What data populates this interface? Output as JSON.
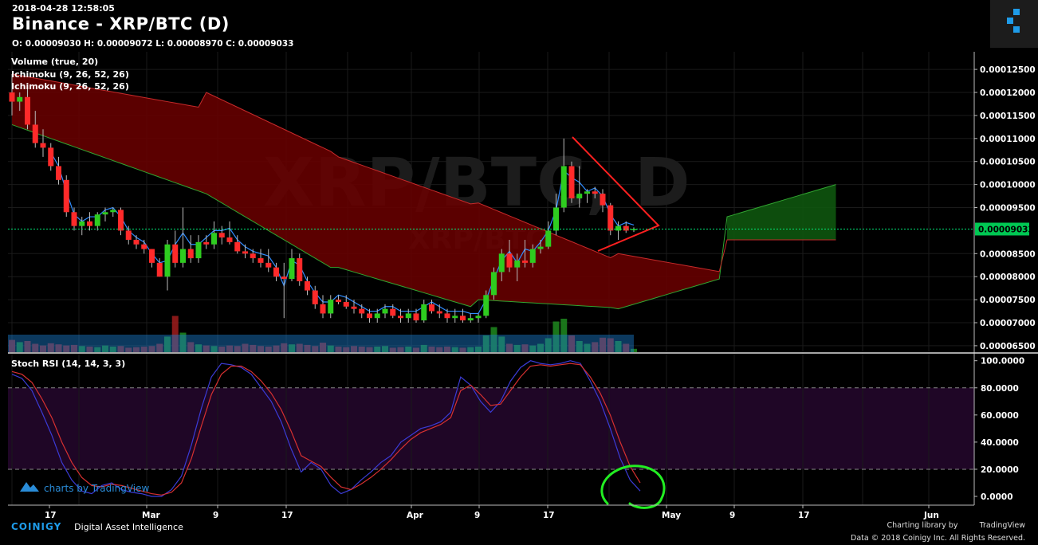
{
  "header": {
    "timestamp": "2018-04-28 12:58:05",
    "title": "Binance - XRP/BTC (D)",
    "ohlc": "O: 0.00009030 H: 0.00009072 L: 0.00008970 C: 0.00009033"
  },
  "indicators": [
    "Volume (true, 20)",
    "Ichimoku (9, 26, 52, 26)",
    "Ichimoku (9, 26, 52, 26)"
  ],
  "watermark": {
    "big": "XRP/BTC, D",
    "small": "XRP/BTC"
  },
  "rsi_label": "Stoch RSI (14, 14, 3, 3)",
  "tradingview_badge": "charts by TradingView",
  "footer": {
    "brand": "COINIGY",
    "tagline": "Digital Asset Intelligence",
    "charting": "Charting library by",
    "tv": "TradingView",
    "copyright": "Data © 2018",
    "company": "Coinigy Inc. All Rights Reserved."
  },
  "colors": {
    "up": "#2ecc1f",
    "down": "#ff2a2a",
    "tenkan": "#2f8cff",
    "cloud_bear": "#6b0000",
    "cloud_bull": "#0f5a0f",
    "last_price": "#00e676",
    "rsi_k": "#3b3bd6",
    "rsi_d": "#d63030"
  },
  "chart_data": [
    {
      "type": "candlestick",
      "price_axis_ticks": [
        "0.00012500",
        "0.00012000",
        "0.00011500",
        "0.00011000",
        "0.00010500",
        "0.00010000",
        "0.00009500",
        "0.00009033",
        "0.00008500",
        "0.00008000",
        "0.00007500",
        "0.00007000",
        "0.00006500"
      ],
      "time_axis_ticks": [
        "17",
        "Mar",
        "9",
        "17",
        "Apr",
        "9",
        "17",
        "May",
        "9",
        "17",
        "Jun"
      ],
      "last_price": "0.00009033",
      "candles": [
        [
          12.0,
          12.4,
          11.5,
          11.8
        ],
        [
          11.8,
          12.0,
          11.6,
          11.9
        ],
        [
          11.9,
          12.1,
          11.2,
          11.3
        ],
        [
          11.3,
          11.6,
          10.8,
          10.9
        ],
        [
          10.9,
          11.2,
          10.6,
          10.8
        ],
        [
          10.8,
          10.9,
          10.3,
          10.4
        ],
        [
          10.4,
          10.6,
          10.0,
          10.1
        ],
        [
          10.1,
          10.2,
          9.3,
          9.4
        ],
        [
          9.4,
          9.5,
          9.0,
          9.1
        ],
        [
          9.1,
          9.3,
          8.9,
          9.2
        ],
        [
          9.2,
          9.4,
          9.0,
          9.1
        ],
        [
          9.1,
          9.4,
          9.0,
          9.35
        ],
        [
          9.35,
          9.5,
          9.2,
          9.4
        ],
        [
          9.4,
          9.5,
          9.3,
          9.45
        ],
        [
          9.45,
          9.5,
          8.9,
          9.0
        ],
        [
          9.0,
          9.1,
          8.7,
          8.8
        ],
        [
          8.8,
          8.9,
          8.6,
          8.7
        ],
        [
          8.7,
          8.8,
          8.5,
          8.6
        ],
        [
          8.6,
          8.6,
          8.2,
          8.3
        ],
        [
          8.3,
          8.4,
          8.0,
          8.0
        ],
        [
          8.0,
          8.8,
          7.7,
          8.7
        ],
        [
          8.7,
          9.0,
          8.2,
          8.3
        ],
        [
          8.3,
          9.5,
          8.2,
          8.6
        ],
        [
          8.6,
          8.9,
          8.3,
          8.4
        ],
        [
          8.4,
          8.9,
          8.3,
          8.75
        ],
        [
          8.75,
          8.9,
          8.6,
          8.7
        ],
        [
          8.7,
          9.2,
          8.6,
          8.95
        ],
        [
          8.95,
          9.1,
          8.7,
          8.85
        ],
        [
          8.85,
          9.2,
          8.7,
          8.75
        ],
        [
          8.75,
          8.9,
          8.5,
          8.55
        ],
        [
          8.55,
          8.7,
          8.4,
          8.5
        ],
        [
          8.5,
          8.6,
          8.3,
          8.4
        ],
        [
          8.4,
          8.6,
          8.2,
          8.3
        ],
        [
          8.3,
          8.6,
          8.1,
          8.2
        ],
        [
          8.2,
          8.3,
          7.9,
          8.0
        ],
        [
          8.0,
          8.3,
          7.1,
          7.95
        ],
        [
          7.95,
          8.6,
          7.9,
          8.4
        ],
        [
          8.4,
          8.5,
          7.8,
          7.9
        ],
        [
          7.9,
          8.0,
          7.6,
          7.7
        ],
        [
          7.7,
          7.8,
          7.3,
          7.4
        ],
        [
          7.4,
          7.6,
          7.1,
          7.2
        ],
        [
          7.2,
          7.6,
          7.1,
          7.5
        ],
        [
          7.5,
          7.6,
          7.4,
          7.45
        ],
        [
          7.45,
          7.6,
          7.3,
          7.35
        ],
        [
          7.35,
          7.5,
          7.2,
          7.3
        ],
        [
          7.3,
          7.4,
          7.1,
          7.2
        ],
        [
          7.2,
          7.3,
          7.0,
          7.1
        ],
        [
          7.1,
          7.3,
          7.0,
          7.2
        ],
        [
          7.2,
          7.4,
          7.1,
          7.3
        ],
        [
          7.3,
          7.4,
          7.1,
          7.15
        ],
        [
          7.15,
          7.3,
          7.0,
          7.1
        ],
        [
          7.1,
          7.3,
          7.0,
          7.2
        ],
        [
          7.2,
          7.3,
          7.0,
          7.05
        ],
        [
          7.05,
          7.5,
          7.0,
          7.4
        ],
        [
          7.4,
          7.5,
          7.2,
          7.25
        ],
        [
          7.25,
          7.4,
          7.1,
          7.2
        ],
        [
          7.2,
          7.3,
          7.0,
          7.1
        ],
        [
          7.1,
          7.3,
          7.0,
          7.15
        ],
        [
          7.15,
          7.3,
          7.0,
          7.05
        ],
        [
          7.05,
          7.2,
          7.0,
          7.1
        ],
        [
          7.1,
          7.2,
          7.0,
          7.15
        ],
        [
          7.15,
          7.7,
          7.1,
          7.6
        ],
        [
          7.6,
          8.2,
          7.5,
          8.1
        ],
        [
          8.1,
          8.6,
          7.9,
          8.5
        ],
        [
          8.5,
          8.8,
          8.1,
          8.2
        ],
        [
          8.2,
          8.5,
          7.9,
          8.35
        ],
        [
          8.35,
          8.8,
          8.2,
          8.3
        ],
        [
          8.3,
          8.7,
          8.2,
          8.6
        ],
        [
          8.6,
          8.8,
          8.5,
          8.65
        ],
        [
          8.65,
          9.2,
          8.6,
          9.0
        ],
        [
          9.0,
          9.8,
          8.9,
          9.5
        ],
        [
          9.5,
          11.0,
          9.4,
          10.4
        ],
        [
          10.4,
          10.5,
          9.6,
          9.7
        ],
        [
          9.7,
          10.4,
          9.5,
          9.8
        ],
        [
          9.8,
          9.9,
          9.6,
          9.85
        ],
        [
          9.85,
          9.95,
          9.7,
          9.8
        ],
        [
          9.8,
          9.9,
          9.4,
          9.55
        ],
        [
          9.55,
          9.6,
          8.9,
          9.0
        ],
        [
          9.0,
          9.2,
          8.8,
          9.1
        ],
        [
          9.1,
          9.2,
          8.95,
          9.0
        ],
        [
          9.03,
          9.07,
          8.97,
          9.033
        ]
      ],
      "volumes": [
        2.2,
        1.8,
        2.0,
        1.5,
        1.2,
        1.6,
        1.4,
        1.2,
        1.3,
        1.1,
        1.0,
        0.9,
        1.2,
        1.0,
        1.1,
        0.8,
        0.9,
        1.0,
        1.1,
        1.5,
        2.8,
        6.5,
        3.5,
        1.8,
        1.4,
        1.2,
        1.1,
        1.0,
        1.2,
        1.1,
        1.5,
        1.3,
        1.1,
        1.0,
        1.2,
        1.6,
        1.4,
        1.5,
        1.3,
        1.1,
        1.7,
        1.2,
        1.0,
        0.9,
        1.1,
        1.0,
        0.9,
        1.0,
        1.1,
        0.8,
        0.9,
        1.0,
        0.8,
        1.3,
        1.0,
        0.9,
        1.0,
        0.9,
        0.8,
        0.9,
        1.0,
        3.0,
        4.5,
        2.8,
        1.5,
        1.3,
        1.4,
        1.2,
        1.5,
        2.5,
        5.5,
        6.0,
        3.0,
        2.0,
        1.5,
        1.8,
        2.6,
        2.5,
        2.0,
        1.5,
        0.6
      ]
    },
    {
      "type": "line",
      "name": "Stoch RSI (14, 14, 3, 3)",
      "axis_ticks": [
        "100.0000",
        "80.0000",
        "60.0000",
        "40.0000",
        "20.0000",
        "0.0000"
      ],
      "ylim": [
        0,
        100
      ],
      "series": [
        {
          "values": [
            90,
            87,
            78,
            62,
            45,
            25,
            12,
            4,
            2,
            8,
            10,
            5,
            3,
            2,
            0,
            0,
            5,
            15,
            38,
            65,
            88,
            98,
            97,
            95,
            90,
            80,
            70,
            55,
            35,
            18,
            25,
            20,
            8,
            2,
            5,
            12,
            18,
            25,
            30,
            40,
            45,
            50,
            52,
            55,
            62,
            88,
            82,
            70,
            62,
            70,
            85,
            95,
            100,
            98,
            97,
            98,
            100,
            98,
            85,
            70,
            50,
            28,
            12,
            4
          ]
        },
        {
          "values": [
            92,
            90,
            84,
            72,
            58,
            40,
            25,
            14,
            8,
            7,
            9,
            8,
            6,
            4,
            2,
            1,
            3,
            10,
            28,
            52,
            75,
            90,
            96,
            96,
            92,
            85,
            76,
            64,
            48,
            30,
            26,
            22,
            14,
            7,
            5,
            9,
            14,
            20,
            27,
            35,
            42,
            47,
            50,
            53,
            58,
            78,
            82,
            75,
            67,
            68,
            78,
            88,
            96,
            97,
            96,
            97,
            98,
            97,
            88,
            76,
            60,
            40,
            22,
            10
          ]
        }
      ]
    }
  ]
}
